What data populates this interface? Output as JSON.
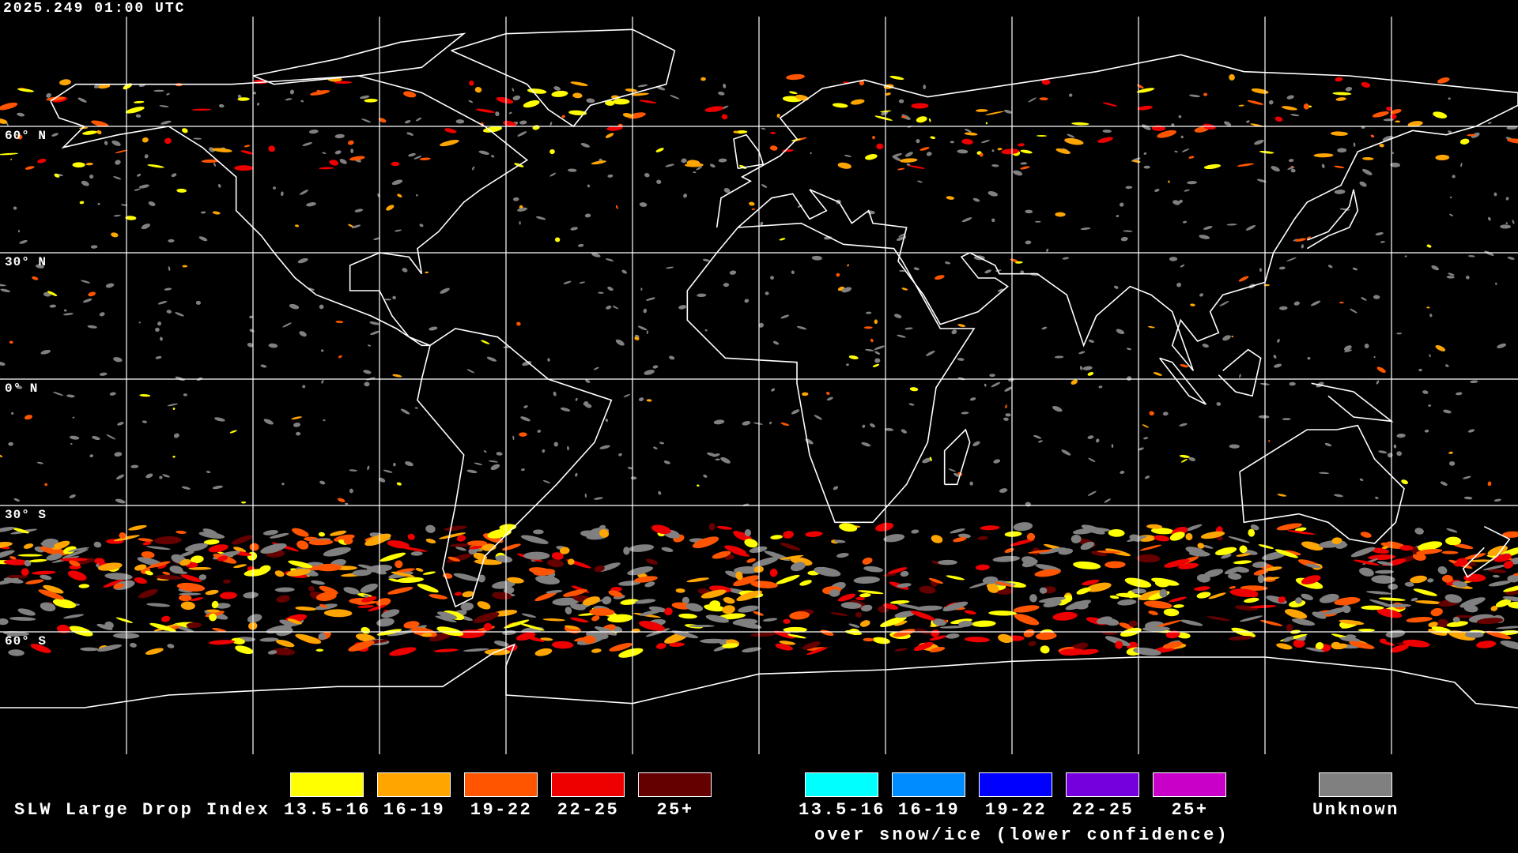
{
  "timestamp": "2025.249 01:00 UTC",
  "latitude_labels": [
    "60° N",
    "30° N",
    "0° N",
    "30° S",
    "60° S"
  ],
  "legend": {
    "title": "SLW Large Drop Index",
    "primary": [
      {
        "label": "13.5-16",
        "color": "#ffff00"
      },
      {
        "label": "16-19",
        "color": "#ffa500"
      },
      {
        "label": "19-22",
        "color": "#ff5500"
      },
      {
        "label": "22-25",
        "color": "#ee0000"
      },
      {
        "label": "25+",
        "color": "#640000"
      }
    ],
    "snow_ice": [
      {
        "label": "13.5-16",
        "color": "#00ffff"
      },
      {
        "label": "16-19",
        "color": "#008cff"
      },
      {
        "label": "19-22",
        "color": "#0000ff"
      },
      {
        "label": "22-25",
        "color": "#7600dd"
      },
      {
        "label": "25+",
        "color": "#c800c8"
      }
    ],
    "snow_ice_caption": "over snow/ice (lower confidence)",
    "unknown": {
      "label": "Unknown",
      "color": "#808080"
    }
  }
}
